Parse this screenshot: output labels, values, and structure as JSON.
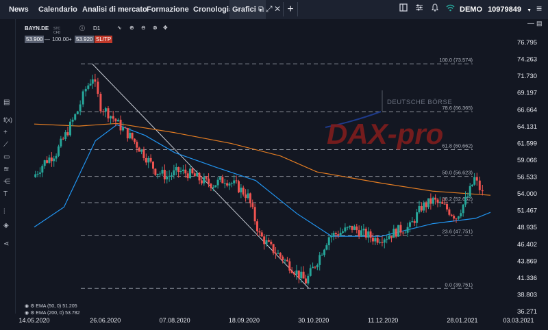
{
  "topbar": {
    "tabs": [
      "News",
      "Calendario",
      "Analisi di mercato",
      "Formazione",
      "Cronologia",
      "Grafici"
    ],
    "active_tab": "Grafici",
    "plus": "+",
    "account_mode": "DEMO",
    "account_number": "10979849",
    "menu_glyph": "≡"
  },
  "instrument": {
    "symbol": "BAYN.DE",
    "type": "STC CFD",
    "timeframe": "D1",
    "bid": "53.900",
    "dash": "—",
    "volume": "100.00",
    "plus": "+",
    "ask": "53.920",
    "sltp": "SL/TP"
  },
  "watermark": {
    "exchange": "DEUTSCHE BÖRSE",
    "brand": "DAX-pro"
  },
  "legend": {
    "ema50": "EMA (50, 0) 51.205",
    "ema200": "EMA (200, 0) 53.782"
  },
  "colors": {
    "up": "#26a69a",
    "down": "#ef5350",
    "ema50": "#2196f3",
    "ema200": "#e67e22",
    "fib": "#8a8f99"
  },
  "chart_data": {
    "type": "candlestick",
    "y_ticks": [
      "76.795",
      "74.263",
      "71.730",
      "69.197",
      "66.664",
      "64.131",
      "61.599",
      "59.066",
      "56.533",
      "54.000",
      "51.467",
      "48.935",
      "46.402",
      "43.869",
      "41.336",
      "38.803",
      "36.271"
    ],
    "ylim": [
      36.271,
      76.795
    ],
    "x_ticks": [
      "14.05.2020",
      "26.06.2020",
      "07.08.2020",
      "18.09.2020",
      "30.10.2020",
      "11.12.2020",
      "28.01.2021",
      "03.03.2021"
    ],
    "fibonacci": [
      {
        "label": "100.0 (73.574)",
        "value": 73.574
      },
      {
        "label": "78.6 (66.365)",
        "value": 66.365
      },
      {
        "label": "61.8 (60.662)",
        "value": 60.662
      },
      {
        "label": "50.0 (56.623)",
        "value": 56.623
      },
      {
        "label": "38.2 (52.662)",
        "value": 52.662
      },
      {
        "label": "23.6 (47.751)",
        "value": 47.751
      },
      {
        "label": "0.0 (39.751)",
        "value": 39.751
      }
    ],
    "trendline": {
      "from": {
        "date": "2020-06-18",
        "value": 73.6
      },
      "to": {
        "date": "2020-10-27",
        "value": 39.8
      }
    },
    "closes": [
      {
        "date": "2020-05-14",
        "value": 56.5
      },
      {
        "date": "2020-05-21",
        "value": 58.8
      },
      {
        "date": "2020-05-28",
        "value": 60.2
      },
      {
        "date": "2020-06-04",
        "value": 63.5
      },
      {
        "date": "2020-06-10",
        "value": 66.5
      },
      {
        "date": "2020-06-15",
        "value": 69.8
      },
      {
        "date": "2020-06-19",
        "value": 71.6
      },
      {
        "date": "2020-06-24",
        "value": 67.2
      },
      {
        "date": "2020-06-30",
        "value": 65.8
      },
      {
        "date": "2020-07-06",
        "value": 64.1
      },
      {
        "date": "2020-07-13",
        "value": 62.3
      },
      {
        "date": "2020-07-20",
        "value": 60.0
      },
      {
        "date": "2020-07-27",
        "value": 57.5
      },
      {
        "date": "2020-08-03",
        "value": 56.6
      },
      {
        "date": "2020-08-10",
        "value": 57.4
      },
      {
        "date": "2020-08-17",
        "value": 57.0
      },
      {
        "date": "2020-08-24",
        "value": 56.0
      },
      {
        "date": "2020-08-31",
        "value": 55.4
      },
      {
        "date": "2020-09-07",
        "value": 56.2
      },
      {
        "date": "2020-09-14",
        "value": 55.2
      },
      {
        "date": "2020-09-21",
        "value": 53.6
      },
      {
        "date": "2020-09-28",
        "value": 47.8
      },
      {
        "date": "2020-10-05",
        "value": 45.8
      },
      {
        "date": "2020-10-12",
        "value": 44.3
      },
      {
        "date": "2020-10-19",
        "value": 42.5
      },
      {
        "date": "2020-10-26",
        "value": 40.8
      },
      {
        "date": "2020-11-02",
        "value": 44.0
      },
      {
        "date": "2020-11-09",
        "value": 47.6
      },
      {
        "date": "2020-11-16",
        "value": 48.2
      },
      {
        "date": "2020-11-23",
        "value": 48.9
      },
      {
        "date": "2020-11-30",
        "value": 48.0
      },
      {
        "date": "2020-12-07",
        "value": 47.2
      },
      {
        "date": "2020-12-14",
        "value": 47.6
      },
      {
        "date": "2020-12-21",
        "value": 48.5
      },
      {
        "date": "2020-12-28",
        "value": 49.0
      },
      {
        "date": "2021-01-04",
        "value": 52.0
      },
      {
        "date": "2021-01-11",
        "value": 53.0
      },
      {
        "date": "2021-01-18",
        "value": 52.0
      },
      {
        "date": "2021-01-25",
        "value": 50.5
      },
      {
        "date": "2021-02-01",
        "value": 53.6
      },
      {
        "date": "2021-02-05",
        "value": 56.3
      },
      {
        "date": "2021-02-10",
        "value": 54.0
      }
    ],
    "series": [
      {
        "name": "EMA (50, 0) 51.205",
        "values": [
          {
            "date": "2020-05-14",
            "value": 49.0
          },
          {
            "date": "2020-06-01",
            "value": 52.0
          },
          {
            "date": "2020-06-20",
            "value": 62.0
          },
          {
            "date": "2020-07-03",
            "value": 64.4
          },
          {
            "date": "2020-07-20",
            "value": 62.8
          },
          {
            "date": "2020-08-07",
            "value": 60.2
          },
          {
            "date": "2020-09-01",
            "value": 58.0
          },
          {
            "date": "2020-09-25",
            "value": 56.0
          },
          {
            "date": "2020-10-20",
            "value": 51.0
          },
          {
            "date": "2020-11-10",
            "value": 47.6
          },
          {
            "date": "2020-12-10",
            "value": 47.6
          },
          {
            "date": "2021-01-10",
            "value": 49.5
          },
          {
            "date": "2021-02-05",
            "value": 50.3
          },
          {
            "date": "2021-02-14",
            "value": 51.2
          }
        ]
      },
      {
        "name": "EMA (200, 0) 53.782",
        "values": [
          {
            "date": "2020-05-14",
            "value": 64.5
          },
          {
            "date": "2020-06-10",
            "value": 64.2
          },
          {
            "date": "2020-07-03",
            "value": 64.6
          },
          {
            "date": "2020-08-07",
            "value": 63.2
          },
          {
            "date": "2020-09-10",
            "value": 61.6
          },
          {
            "date": "2020-10-10",
            "value": 59.7
          },
          {
            "date": "2020-11-01",
            "value": 57.3
          },
          {
            "date": "2020-12-10",
            "value": 55.6
          },
          {
            "date": "2021-01-10",
            "value": 54.4
          },
          {
            "date": "2021-02-14",
            "value": 53.78
          }
        ]
      }
    ]
  }
}
